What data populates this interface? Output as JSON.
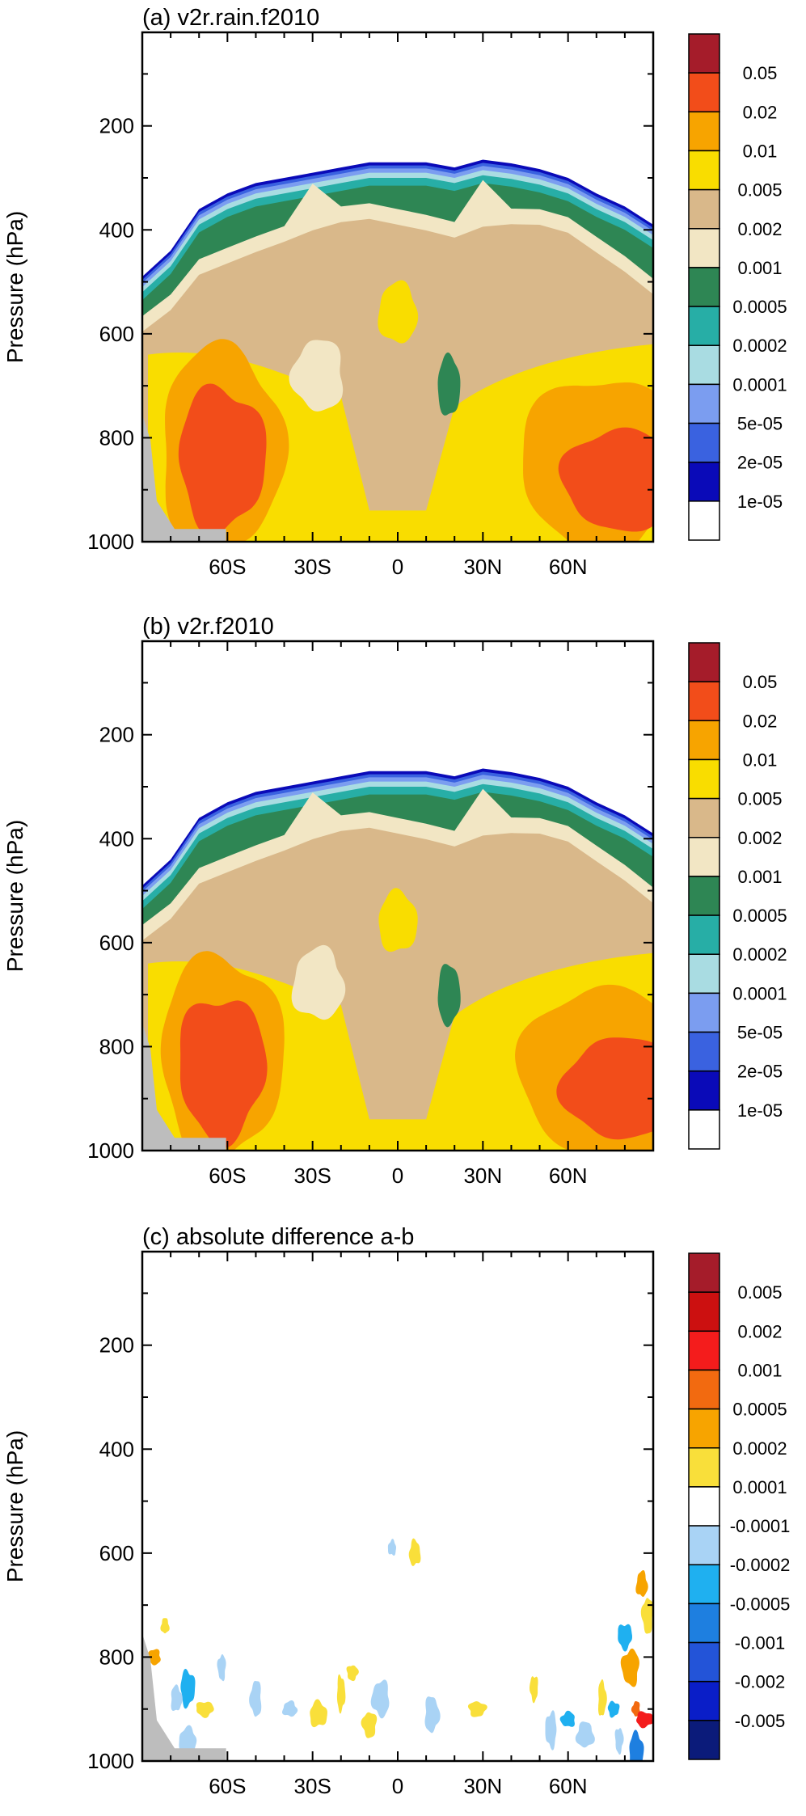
{
  "chart_data": [
    {
      "type": "heatmap",
      "title": "(a) v2r.rain.f2010",
      "ylabel": "Pressure (hPa)",
      "x_ticks": [
        "60S",
        "30S",
        "0",
        "30N",
        "60N"
      ],
      "x_tick_values": [
        -60,
        -30,
        0,
        30,
        60
      ],
      "y_ticks": [
        "200",
        "400",
        "600",
        "800",
        "1000"
      ],
      "y_tick_values": [
        200,
        400,
        600,
        800,
        1000
      ],
      "xlim": [
        -90,
        90
      ],
      "ylim": [
        1000,
        20
      ],
      "colorbar_labels": [
        "0.05",
        "0.02",
        "0.01",
        "0.005",
        "0.002",
        "0.001",
        "0.0005",
        "0.0002",
        "0.0001",
        "5e-05",
        "2e-05",
        "1e-05"
      ],
      "colors": [
        "#a51c2a",
        "#f24d1a",
        "#f7a400",
        "#f9dd00",
        "#d9b88a",
        "#f2e6c4",
        "#2e8654",
        "#27aea6",
        "#a9dce2",
        "#7b9df0",
        "#3a62e0",
        "#0a0ab8",
        "#ffffff"
      ],
      "ground_color": "#bdbdbd"
    },
    {
      "type": "heatmap",
      "title": "(b) v2r.f2010",
      "ylabel": "Pressure (hPa)",
      "x_ticks": [
        "60S",
        "30S",
        "0",
        "30N",
        "60N"
      ],
      "x_tick_values": [
        -60,
        -30,
        0,
        30,
        60
      ],
      "y_ticks": [
        "200",
        "400",
        "600",
        "800",
        "1000"
      ],
      "y_tick_values": [
        200,
        400,
        600,
        800,
        1000
      ],
      "xlim": [
        -90,
        90
      ],
      "ylim": [
        1000,
        20
      ],
      "colorbar_labels": [
        "0.05",
        "0.02",
        "0.01",
        "0.005",
        "0.002",
        "0.001",
        "0.0005",
        "0.0002",
        "0.0001",
        "5e-05",
        "2e-05",
        "1e-05"
      ],
      "colors": [
        "#a51c2a",
        "#f24d1a",
        "#f7a400",
        "#f9dd00",
        "#d9b88a",
        "#f2e6c4",
        "#2e8654",
        "#27aea6",
        "#a9dce2",
        "#7b9df0",
        "#3a62e0",
        "#0a0ab8",
        "#ffffff"
      ],
      "ground_color": "#bdbdbd"
    },
    {
      "type": "heatmap",
      "title": "(c) absolute difference a-b",
      "ylabel": "Pressure (hPa)",
      "x_ticks": [
        "60S",
        "30S",
        "0",
        "30N",
        "60N"
      ],
      "x_tick_values": [
        -60,
        -30,
        0,
        30,
        60
      ],
      "y_ticks": [
        "200",
        "400",
        "600",
        "800",
        "1000"
      ],
      "y_tick_values": [
        200,
        400,
        600,
        800,
        1000
      ],
      "xlim": [
        -90,
        90
      ],
      "ylim": [
        1000,
        20
      ],
      "colorbar_labels": [
        "0.005",
        "0.002",
        "0.001",
        "0.0005",
        "0.0002",
        "0.0001",
        "-0.0001",
        "-0.0002",
        "-0.0005",
        "-0.001",
        "-0.002",
        "-0.005"
      ],
      "colors": [
        "#a51c2a",
        "#cc1010",
        "#f41c1c",
        "#f26a10",
        "#f7a400",
        "#f9df3a",
        "#ffffff",
        "#a9d3f5",
        "#1fb0f0",
        "#1e7fe0",
        "#2354d8",
        "#0a1ec8",
        "#0b1b7a"
      ],
      "ground_color": "#bdbdbd"
    }
  ]
}
